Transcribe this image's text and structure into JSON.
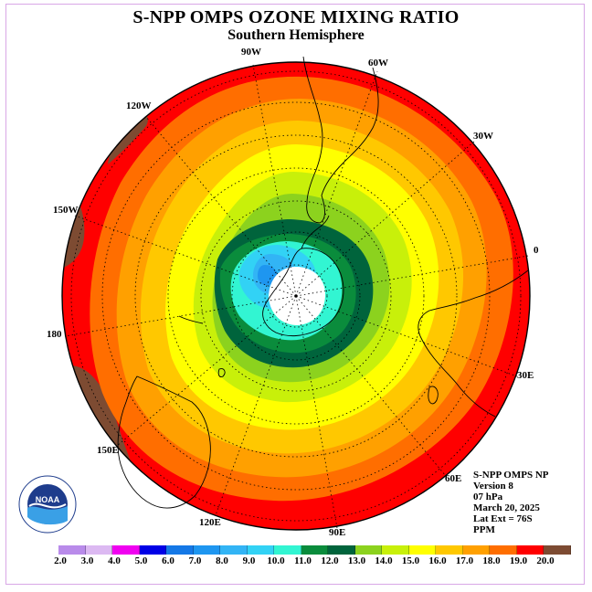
{
  "title": "S-NPP OMPS OZONE MIXING RATIO",
  "subtitle": "Southern Hemisphere",
  "longitude_labels": {
    "lon_90w": "90W",
    "lon_60w": "60W",
    "lon_30w": "30W",
    "lon_0": "0",
    "lon_30e": "30E",
    "lon_60e": "60E",
    "lon_90e": "90E",
    "lon_120e": "120E",
    "lon_150e": "150E",
    "lon_180": "180",
    "lon_150w": "150W",
    "lon_120w": "120W"
  },
  "info": {
    "instrument": "S-NPP OMPS NP",
    "version": "Version 8",
    "pressure": "07 hPa",
    "date": "March 20, 2025",
    "lat_ext": "Lat Ext = 76S",
    "units": "PPM"
  },
  "logo": {
    "text": "NOAA",
    "ring_text": "NATIONAL OCEANIC AND ATMOSPHERIC ADMINISTRATION · U.S. DEPARTMENT OF COMMERCE"
  },
  "colorbar": {
    "labels": [
      "2.0",
      "3.0",
      "4.0",
      "5.0",
      "6.0",
      "7.0",
      "8.0",
      "9.0",
      "10.0",
      "11.0",
      "12.0",
      "13.0",
      "14.0",
      "15.0",
      "16.0",
      "17.0",
      "18.0",
      "19.0",
      "20.0"
    ],
    "colors": [
      "#b98bea",
      "#dcb9f2",
      "#f000f0",
      "#0000e6",
      "#1478e6",
      "#1e96f0",
      "#32b4f5",
      "#32d2f5",
      "#32f5d2",
      "#0a8c3c",
      "#00643c",
      "#8cd21e",
      "#c8f00a",
      "#ffff00",
      "#ffc800",
      "#ffa000",
      "#ff6e00",
      "#ff0000",
      "#7d4b32"
    ]
  },
  "ozone_field": {
    "max_level": 20.0,
    "edge_level": "19.0-20.0",
    "polar_minimum_level": "7.0-8.0",
    "no_data_region": "pole"
  }
}
